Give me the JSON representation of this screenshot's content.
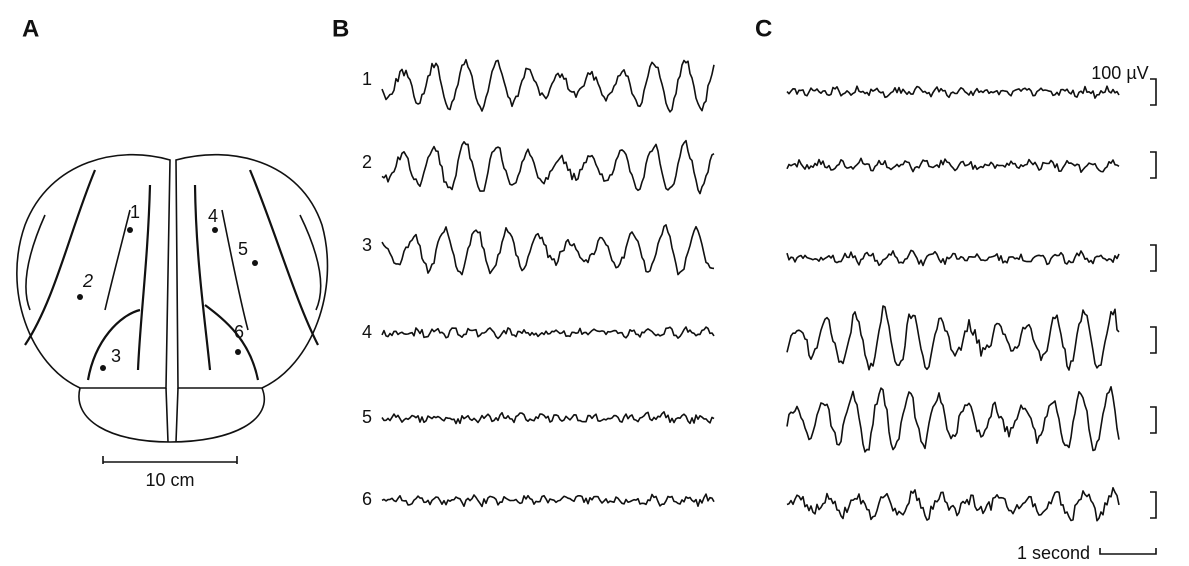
{
  "panels": [
    "A",
    "B",
    "C"
  ],
  "brain": {
    "electrodes": [
      "1",
      "2",
      "3",
      "4",
      "5",
      "6"
    ],
    "scale_bar": "10 cm"
  },
  "traces_b": {
    "labels": [
      "1",
      "2",
      "3",
      "4",
      "5",
      "6"
    ]
  },
  "calibration": {
    "amplitude": "100 µV",
    "time": "1 second"
  }
}
